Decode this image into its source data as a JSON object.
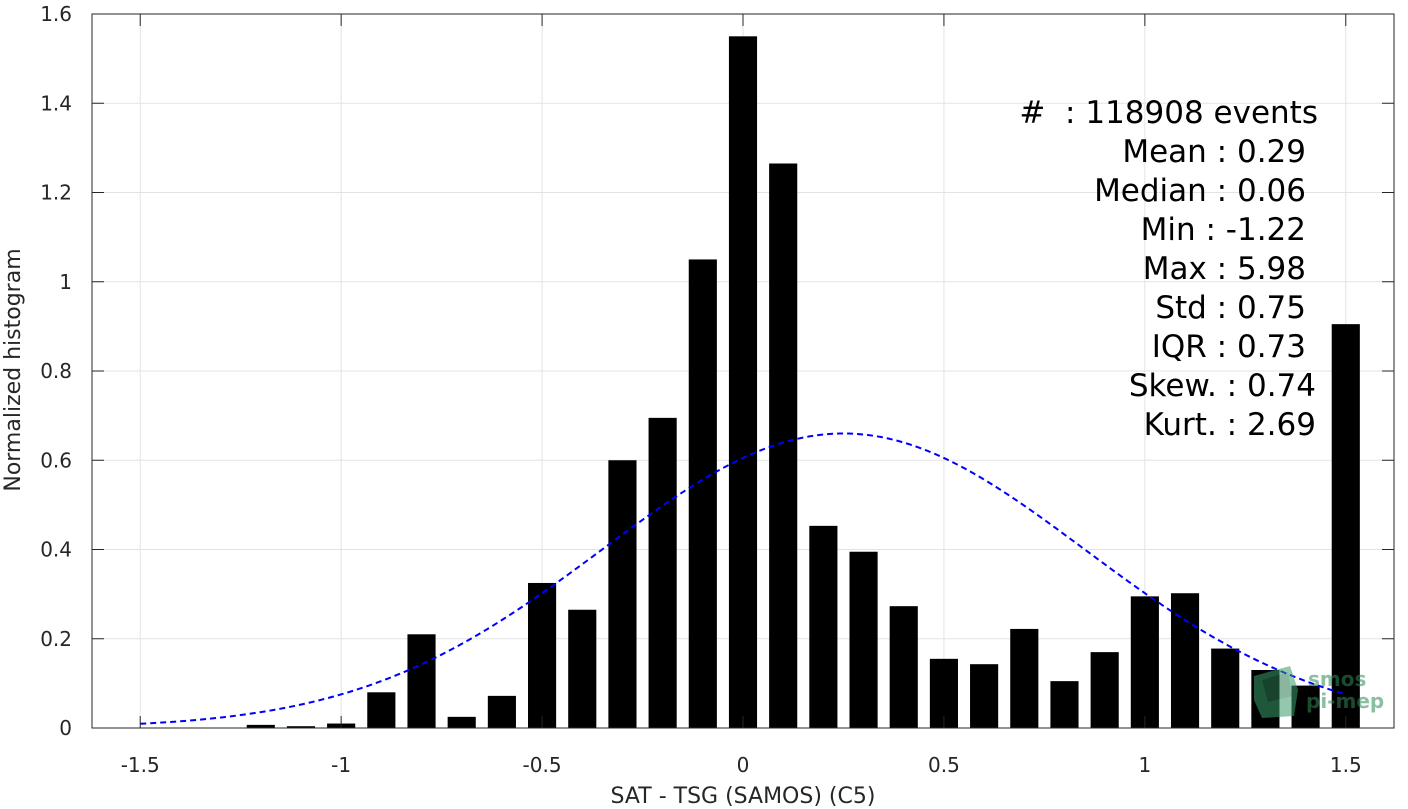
{
  "chart_data": {
    "type": "bar",
    "xlabel": "SAT - TSG (SAMOS) (C5)",
    "ylabel": "Normalized histogram",
    "xlim": [
      -1.62,
      1.62
    ],
    "ylim": [
      0,
      1.6
    ],
    "xticks": [
      "-1.5",
      "-1",
      "-0.5",
      "0",
      "0.5",
      "1",
      "1.5"
    ],
    "yticks": [
      "0",
      "0.2",
      "0.4",
      "0.6",
      "0.8",
      "1",
      "1.2",
      "1.4",
      "1.6"
    ],
    "grid": true,
    "bar_width": 0.07,
    "x": [
      -1.2,
      -1.1,
      -1.0,
      -0.9,
      -0.8,
      -0.7,
      -0.6,
      -0.5,
      -0.4,
      -0.3,
      -0.2,
      -0.1,
      0.0,
      0.1,
      0.2,
      0.3,
      0.4,
      0.5,
      0.6,
      0.7,
      0.8,
      0.9,
      1.0,
      1.1,
      1.2,
      1.3,
      1.4,
      1.5
    ],
    "values": [
      0.007,
      0.004,
      0.01,
      0.08,
      0.21,
      0.025,
      0.072,
      0.325,
      0.265,
      0.6,
      0.695,
      1.05,
      1.55,
      1.265,
      0.453,
      0.395,
      0.273,
      0.155,
      0.143,
      0.222,
      0.105,
      0.17,
      0.295,
      0.302,
      0.178,
      0.13,
      0.095,
      0.905
    ],
    "bar_color": "#000000",
    "fit": {
      "type": "normal",
      "mean": 0.25,
      "std": 0.6,
      "peak": 0.66,
      "x_range": [
        -1.5,
        1.5
      ],
      "color": "#0000ff",
      "style": "dashed"
    },
    "annotations": [
      "#  : 118908 events",
      "Mean : 0.29",
      "Median : 0.06",
      "Min : -1.22",
      "Max : 5.98",
      "Std : 0.75",
      "IQR : 0.73",
      "Skew. : 0.74",
      "Kurt. : 2.69"
    ]
  },
  "logo": {
    "line1": "smos",
    "line2": "pi-mep",
    "color": "#2e8b57"
  }
}
